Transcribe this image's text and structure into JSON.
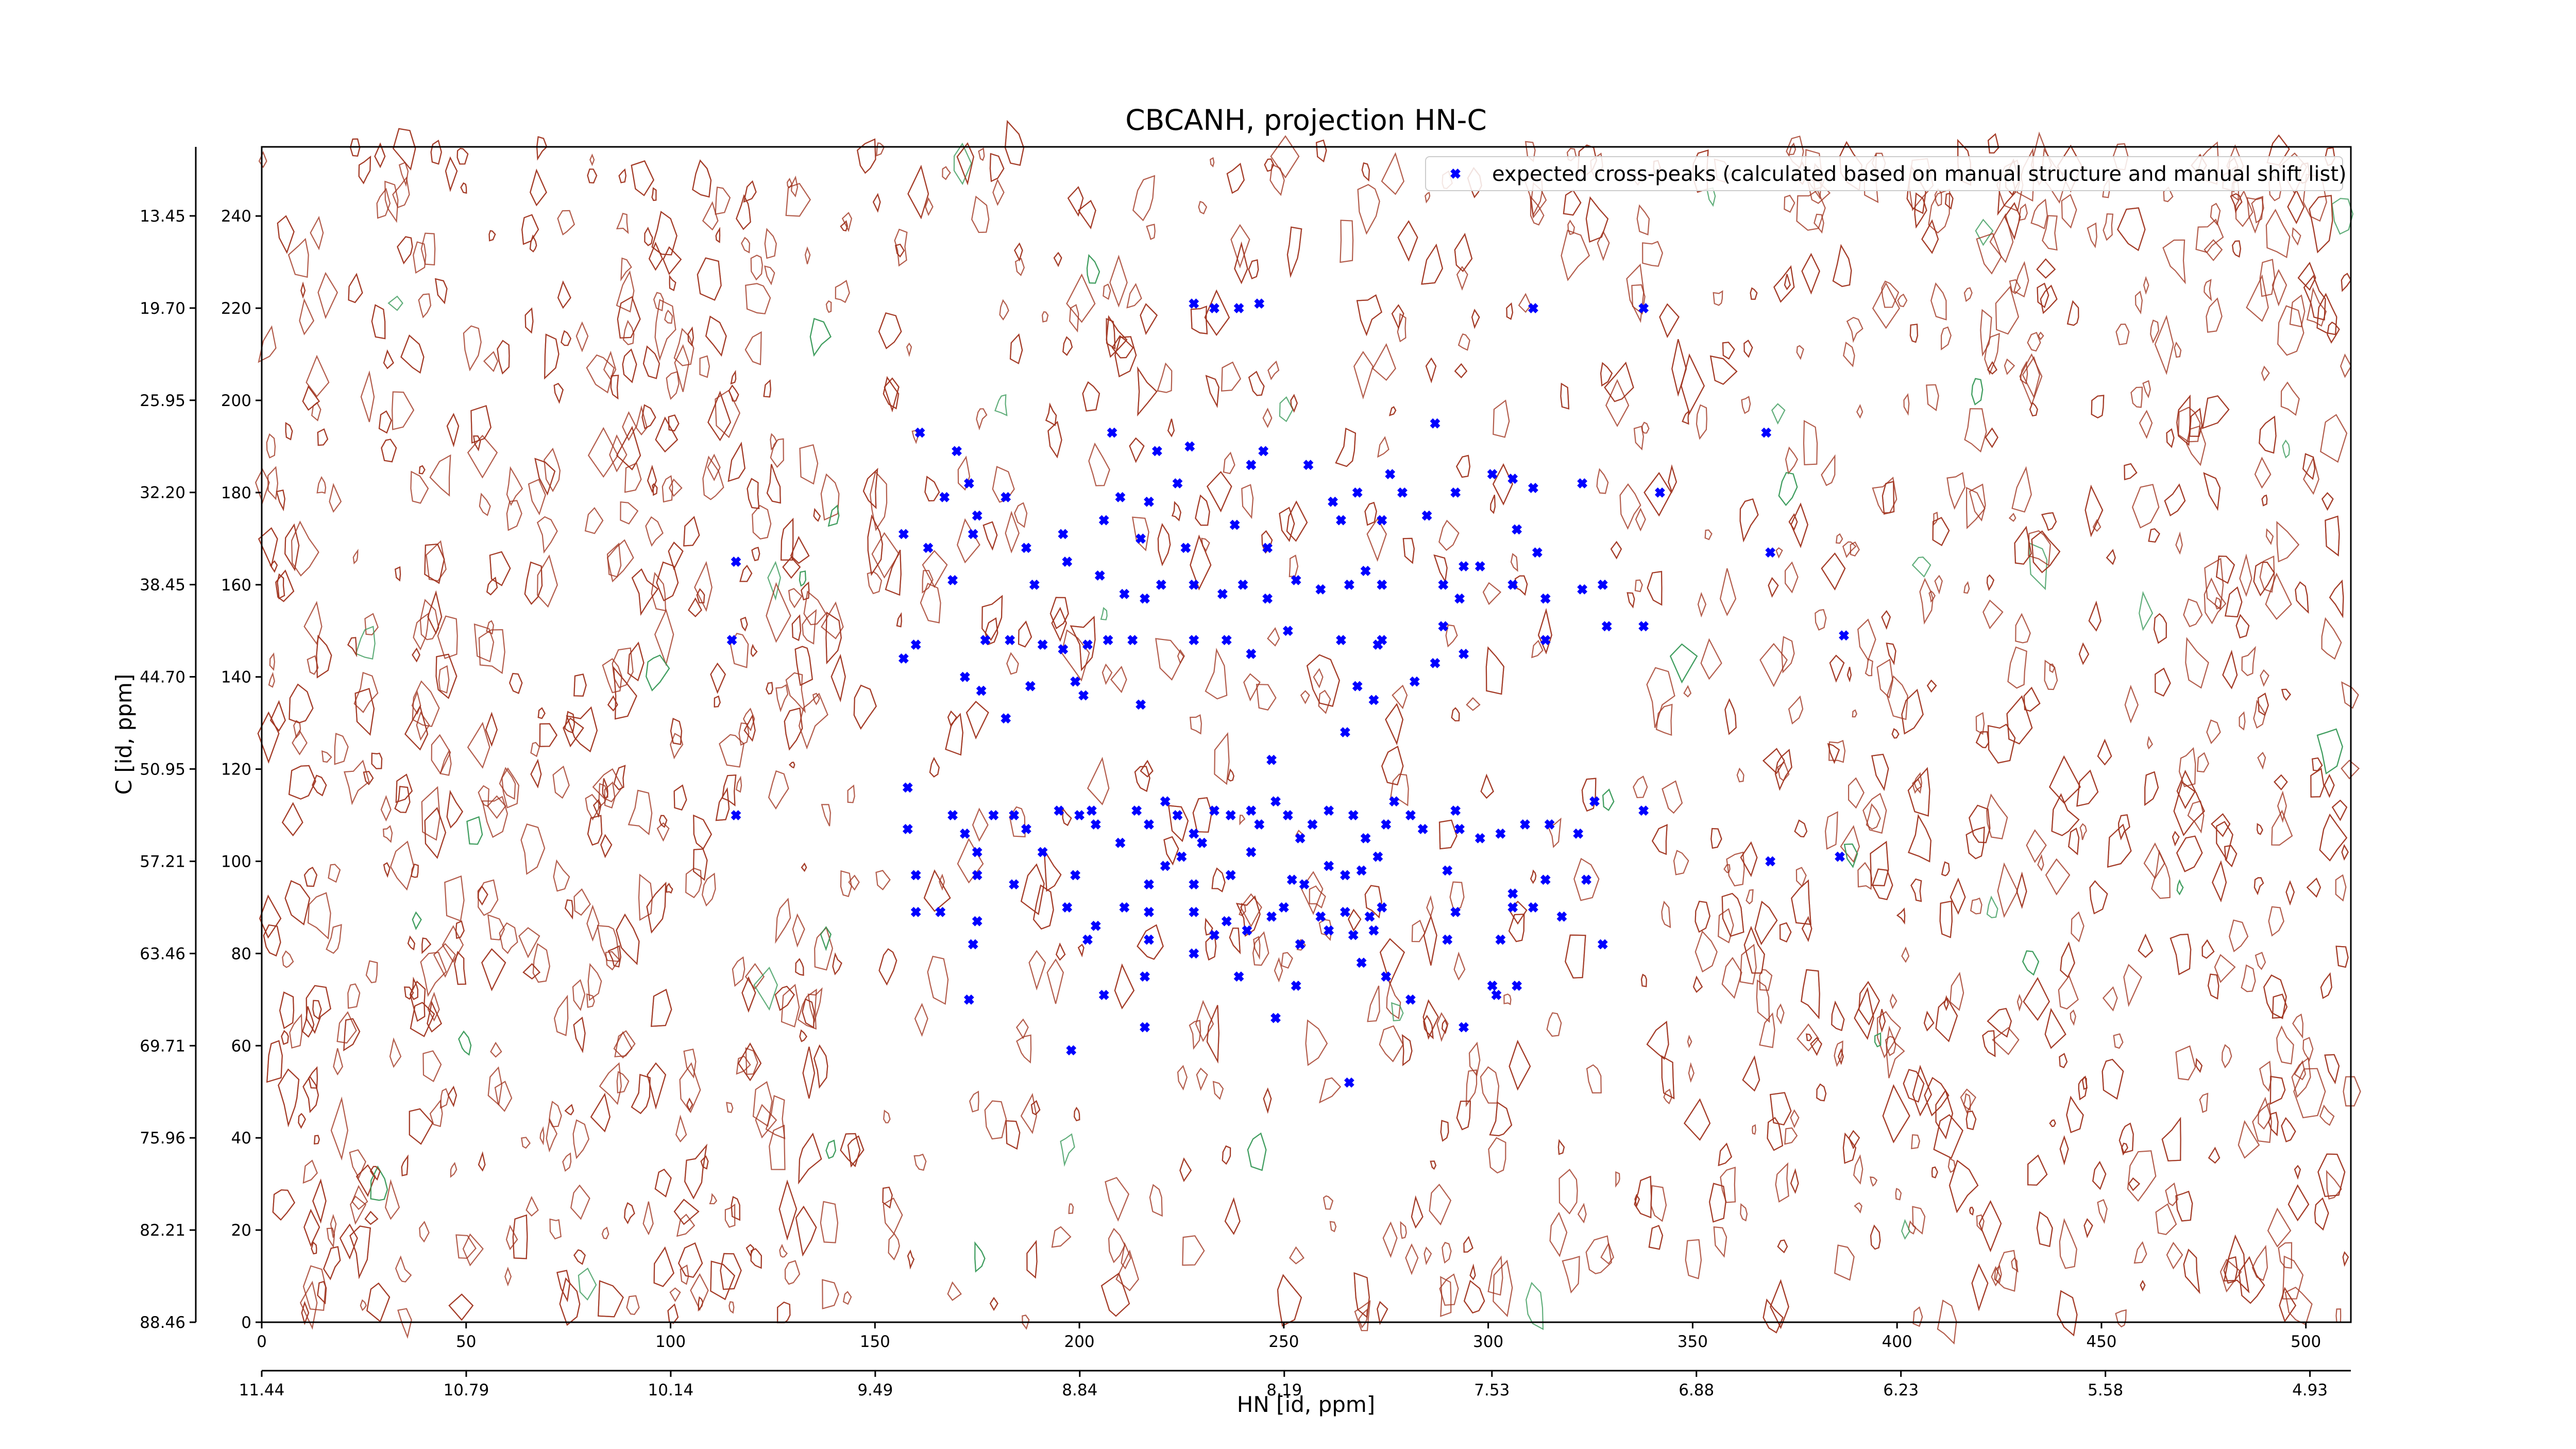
{
  "chart_data": {
    "type": "scatter",
    "title": "CBCANH, projection HN-C",
    "xlabel": "HN [id, ppm]",
    "ylabel": "C [id, ppm]",
    "xlim": [
      0,
      511
    ],
    "ylim": [
      0,
      255
    ],
    "xticks": [
      0,
      50,
      100,
      150,
      200,
      250,
      300,
      350,
      400,
      450,
      500
    ],
    "yticks": [
      0,
      20,
      40,
      60,
      80,
      100,
      120,
      140,
      160,
      180,
      200,
      220,
      240
    ],
    "x2lim": [
      11.44,
      4.8
    ],
    "x2ticks": [
      11.44,
      10.79,
      10.14,
      9.49,
      8.84,
      8.19,
      7.53,
      6.88,
      6.23,
      5.58,
      4.93
    ],
    "y2lim": [
      88.46,
      8.77
    ],
    "y2ticks": [
      88.46,
      82.21,
      75.96,
      69.71,
      63.46,
      57.21,
      50.95,
      {
        "value": 44.7,
        "label": "44.70"
      },
      38.45,
      {
        "value": 32.2,
        "label": "32.20"
      },
      25.95,
      {
        "value": 19.7,
        "label": "19.70"
      },
      13.45
    ],
    "legend": "upper right",
    "series": [
      {
        "name": "expected cross-peaks (calculated based on manual structure and manual shift list)",
        "color": "#0000ff",
        "x": [
          228,
          233,
          239,
          244,
          311,
          338,
          161,
          170,
          208,
          219,
          227,
          242,
          245,
          256,
          276,
          287,
          301,
          306,
          311,
          323,
          368,
          167,
          173,
          175,
          182,
          210,
          217,
          224,
          262,
          268,
          279,
          292,
          342,
          157,
          163,
          174,
          187,
          196,
          197,
          206,
          215,
          226,
          238,
          246,
          264,
          274,
          285,
          294,
          307,
          312,
          369,
          116,
          169,
          189,
          205,
          211,
          216,
          220,
          228,
          235,
          240,
          246,
          253,
          259,
          266,
          270,
          274,
          289,
          293,
          298,
          306,
          314,
          323,
          328,
          329,
          338,
          314,
          115,
          160,
          177,
          183,
          191,
          196,
          202,
          207,
          213,
          228,
          236,
          242,
          251,
          264,
          274,
          289,
          294,
          287,
          282,
          268,
          273,
          387,
          157,
          172,
          188,
          199,
          201,
          176,
          182,
          215,
          265,
          272,
          247,
          158,
          116,
          158,
          169,
          172,
          175,
          179,
          184,
          187,
          191,
          195,
          200,
          203,
          204,
          210,
          214,
          217,
          221,
          224,
          228,
          230,
          233,
          237,
          242,
          244,
          248,
          251,
          254,
          257,
          261,
          267,
          270,
          275,
          277,
          281,
          284,
          292,
          293,
          298,
          303,
          309,
          315,
          322,
          326,
          338,
          386,
          369,
          160,
          175,
          184,
          199,
          217,
          221,
          225,
          228,
          237,
          242,
          252,
          255,
          261,
          265,
          269,
          273,
          290,
          306,
          314,
          324,
          160,
          166,
          175,
          197,
          204,
          211,
          217,
          228,
          236,
          241,
          247,
          250,
          259,
          265,
          271,
          274,
          292,
          306,
          311,
          318,
          174,
          202,
          217,
          233,
          254,
          261,
          272,
          267,
          269,
          290,
          303,
          328,
          228,
          216,
          239,
          253,
          275,
          301,
          307,
          173,
          206,
          281,
          294,
          302,
          216,
          248,
          198,
          266
        ],
        "values": [
          221,
          220,
          220,
          221,
          220,
          220,
          193,
          189,
          193,
          189,
          190,
          186,
          189,
          186,
          184,
          195,
          184,
          183,
          181,
          182,
          193,
          179,
          182,
          175,
          179,
          179,
          178,
          182,
          178,
          180,
          180,
          180,
          180,
          171,
          168,
          171,
          168,
          171,
          165,
          174,
          170,
          168,
          173,
          168,
          174,
          174,
          175,
          164,
          172,
          167,
          167,
          165,
          161,
          160,
          162,
          158,
          157,
          160,
          160,
          158,
          160,
          157,
          161,
          159,
          160,
          163,
          160,
          160,
          157,
          164,
          160,
          157,
          159,
          160,
          151,
          151,
          148,
          148,
          147,
          148,
          148,
          147,
          146,
          147,
          148,
          148,
          148,
          148,
          145,
          150,
          148,
          148,
          151,
          145,
          143,
          139,
          138,
          147,
          149,
          144,
          140,
          138,
          139,
          136,
          137,
          131,
          134,
          128,
          135,
          122,
          116,
          110,
          107,
          110,
          106,
          102,
          110,
          110,
          107,
          102,
          111,
          110,
          111,
          108,
          104,
          111,
          108,
          113,
          110,
          106,
          104,
          111,
          110,
          111,
          108,
          113,
          110,
          105,
          108,
          111,
          110,
          105,
          108,
          113,
          110,
          107,
          111,
          107,
          105,
          106,
          108,
          108,
          106,
          113,
          111,
          101,
          100,
          97,
          97,
          95,
          97,
          95,
          99,
          101,
          95,
          97,
          102,
          96,
          95,
          99,
          97,
          98,
          101,
          98,
          93,
          96,
          96,
          89,
          89,
          87,
          90,
          86,
          90,
          89,
          89,
          87,
          85,
          88,
          90,
          88,
          89,
          88,
          90,
          89,
          90,
          90,
          88,
          82,
          83,
          83,
          84,
          82,
          85,
          85,
          84,
          78,
          83,
          83,
          82,
          80,
          75,
          75,
          73,
          75,
          73,
          73,
          70,
          71,
          70,
          64,
          71,
          64,
          66,
          59,
          52
        ]
      }
    ]
  }
}
